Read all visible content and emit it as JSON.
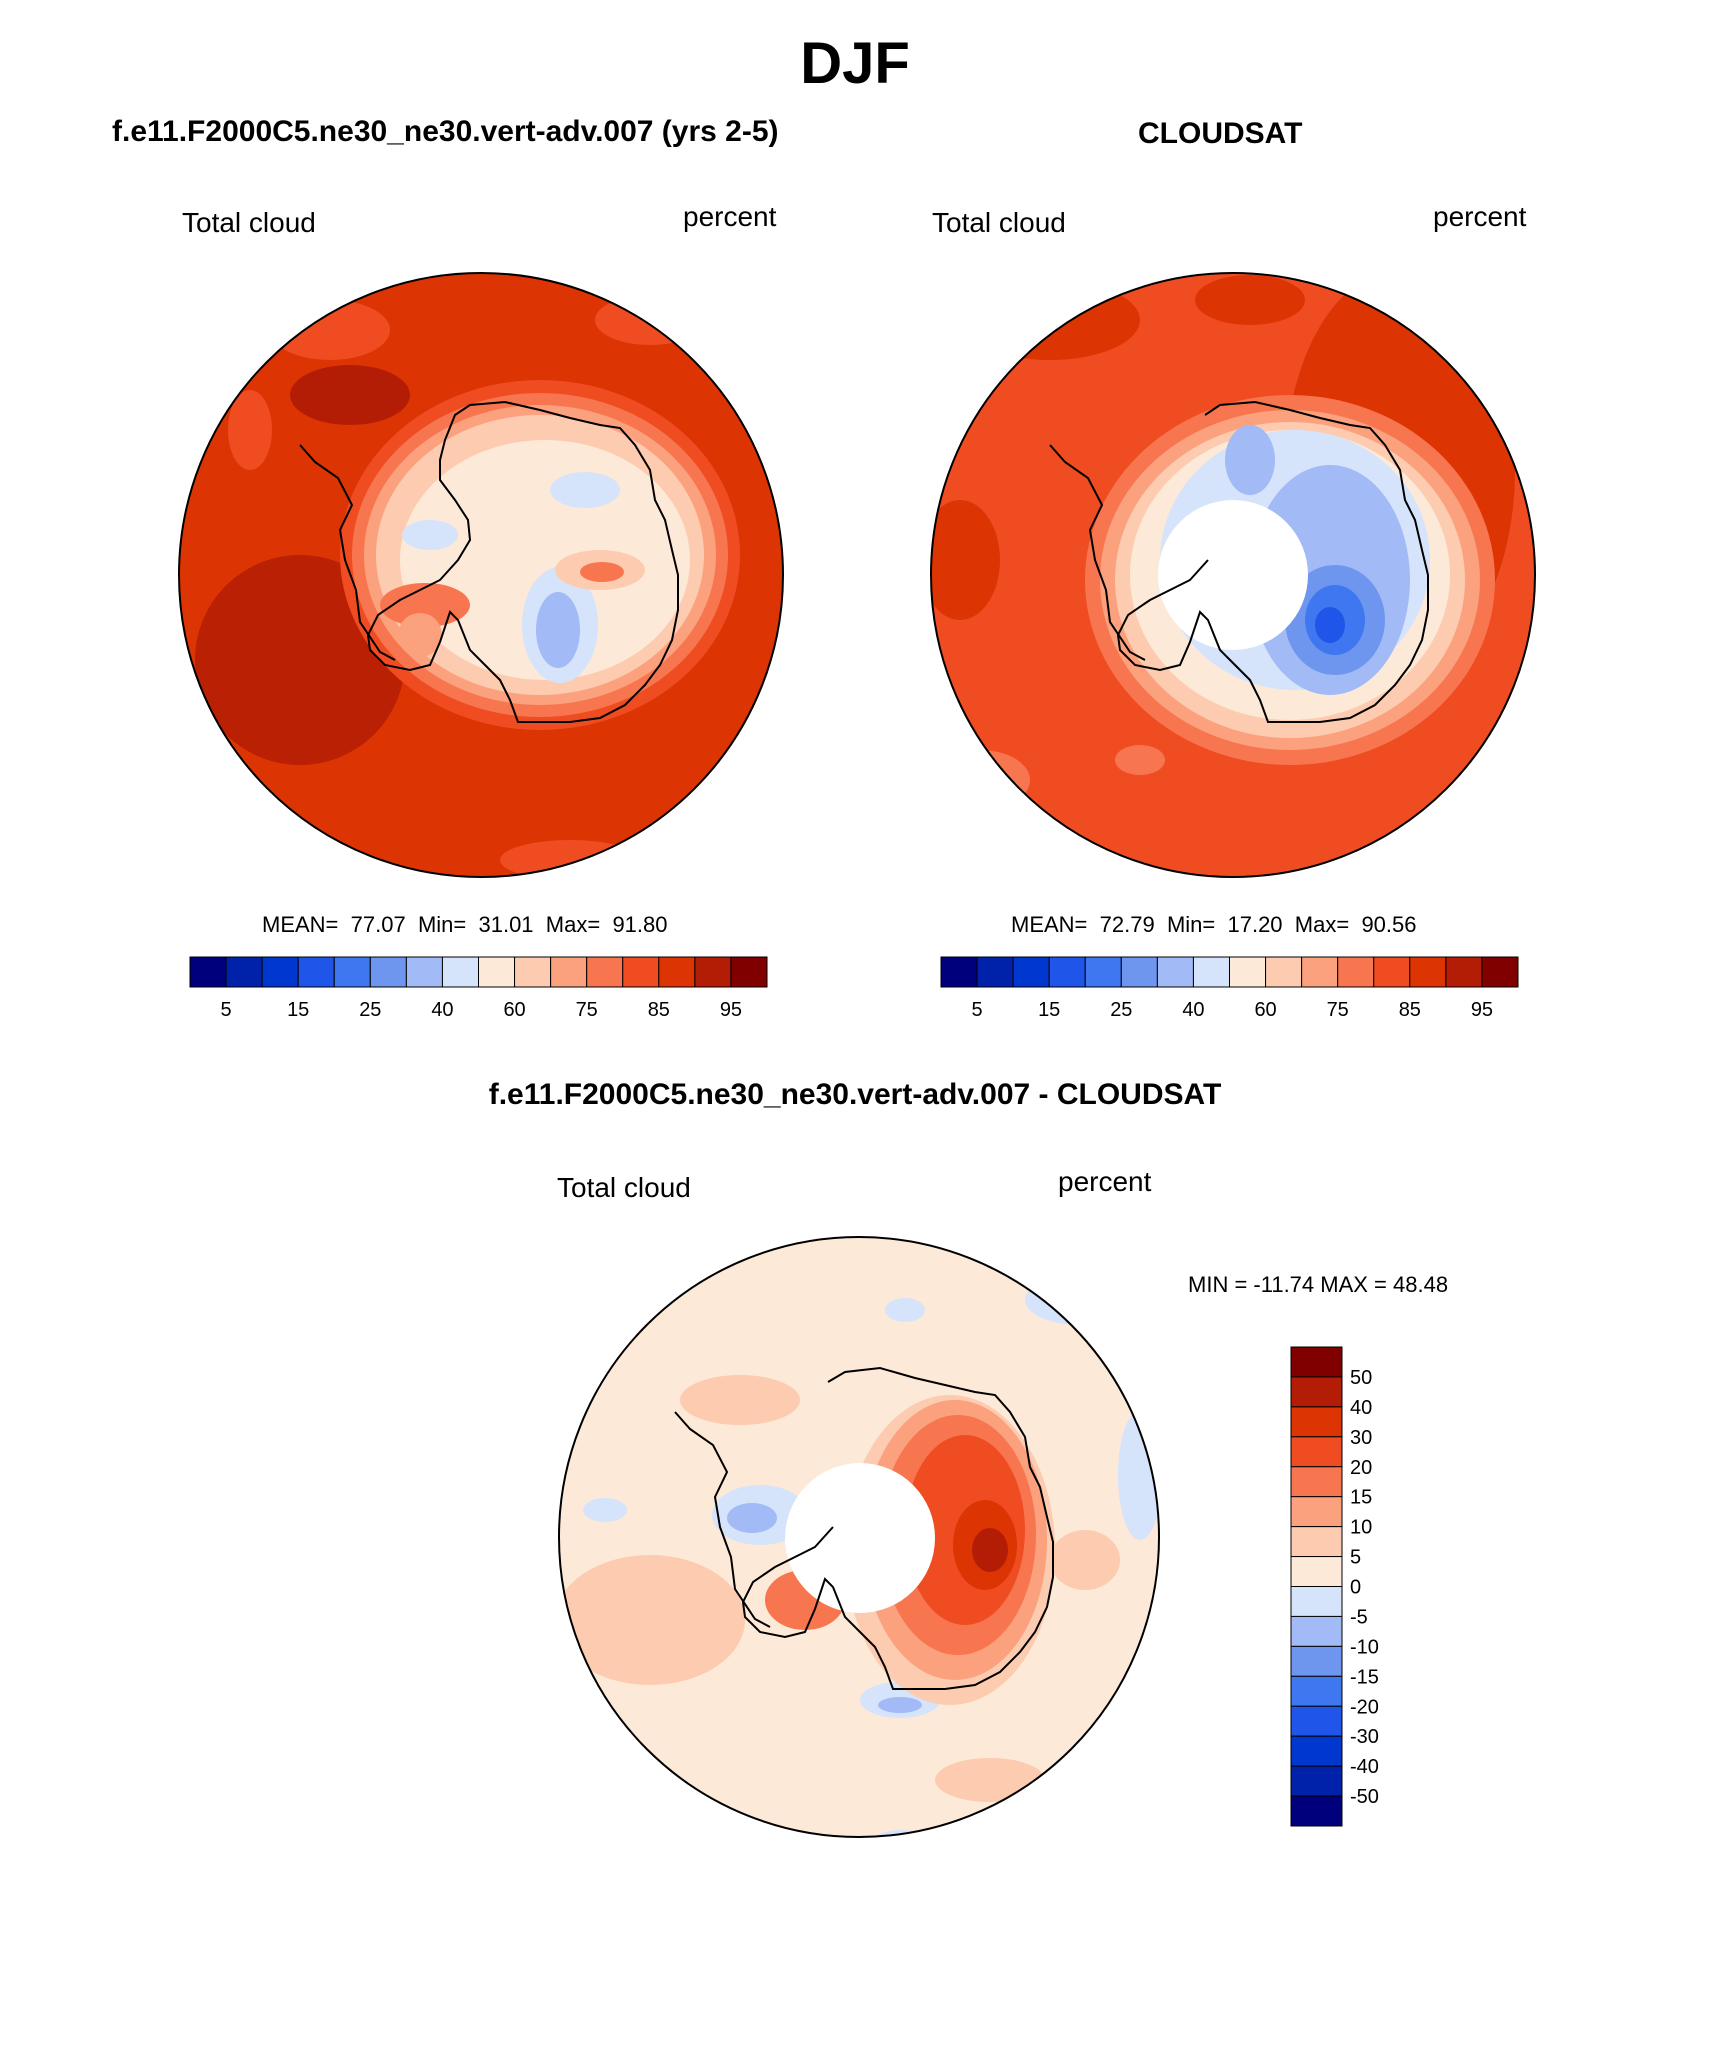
{
  "page": {
    "title": "DJF",
    "panel_left_title": "f.e11.F2000C5.ne30_ne30.vert-adv.007 (yrs 2-5)",
    "panel_right_title": "CLOUDSAT",
    "panel_diff_title": "f.e11.F2000C5.ne30_ne30.vert-adv.007 - CLOUDSAT"
  },
  "maps": {
    "left": {
      "variable": "Total cloud",
      "units": "percent",
      "stats": {
        "mean_label": "MEAN=",
        "mean": "77.07",
        "min_label": "Min=",
        "min": "31.01",
        "max_label": "Max=",
        "max": "91.80"
      }
    },
    "right": {
      "variable": "Total cloud",
      "units": "percent",
      "stats": {
        "mean_label": "MEAN=",
        "mean": "72.79",
        "min_label": "Min=",
        "min": "17.20",
        "max_label": "Max=",
        "max": "90.56"
      }
    },
    "diff": {
      "variable": "Total cloud",
      "units": "percent",
      "stats_text": "MIN = -11.74 MAX =  48.48"
    }
  },
  "colorbars": {
    "absolute": {
      "colors": [
        "#00007d",
        "#0022aa",
        "#0038cf",
        "#1f55e8",
        "#3f77f0",
        "#6e96ee",
        "#a2baf5",
        "#d5e4fb",
        "#fde9d8",
        "#fdcbb0",
        "#fba17d",
        "#f7764f",
        "#f04c22",
        "#dc3403",
        "#b41d05",
        "#800000"
      ],
      "tick_labels": [
        "5",
        "15",
        "25",
        "40",
        "60",
        "75",
        "85",
        "95"
      ]
    },
    "difference": {
      "colors": [
        "#800000",
        "#b41d05",
        "#dc3403",
        "#f04c22",
        "#f7764f",
        "#fba17d",
        "#fdcbb0",
        "#fde9d8",
        "#d5e4fb",
        "#a2baf5",
        "#6e96ee",
        "#3f77f0",
        "#1f55e8",
        "#0038cf",
        "#0022aa",
        "#00007d"
      ],
      "tick_labels": [
        "50",
        "40",
        "30",
        "20",
        "15",
        "10",
        "5",
        "0",
        "-5",
        "-10",
        "-15",
        "-20",
        "-30",
        "-40",
        "-50"
      ]
    }
  }
}
